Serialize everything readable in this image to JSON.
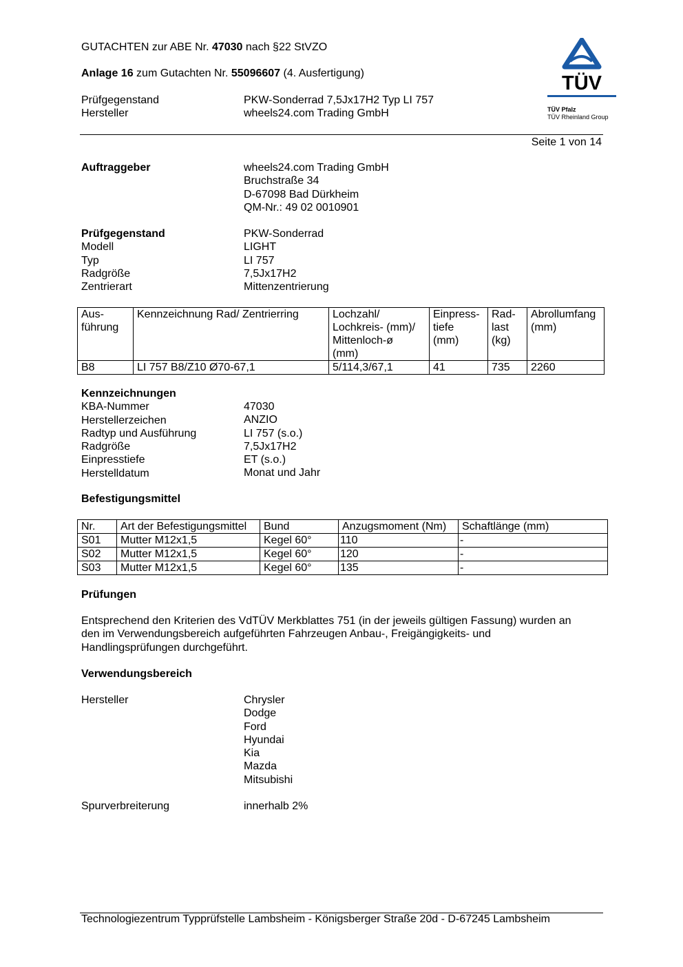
{
  "header": {
    "line1_prefix": "GUTACHTEN zur ABE Nr. ",
    "line1_number": "47030",
    "line1_suffix": " nach §22 StVZO",
    "line2_prefix": "Anlage 16",
    "line2_mid": " zum Gutachten Nr. ",
    "line2_number": "55096607",
    "line2_suffix": " (4. Ausfertigung)",
    "rows": [
      {
        "label": "Prüfgegenstand",
        "value": "PKW-Sonderrad 7,5Jx17H2 Typ LI 757"
      },
      {
        "label": "Hersteller",
        "value": "wheels24.com Trading GmbH"
      }
    ],
    "page": "Seite 1 von 14"
  },
  "logo": {
    "text": "TÜV",
    "line1": "TÜV Pfalz",
    "line2": "TÜV Rheinland Group",
    "color": "#1a5aa6"
  },
  "auftraggeber": {
    "label": "Auftraggeber",
    "lines": [
      "wheels24.com Trading GmbH",
      "Bruchstraße 34",
      "D-67098 Bad Dürkheim",
      "QM-Nr.: 49 02 0010901"
    ]
  },
  "pruefgegenstand": {
    "heading": "Prüfgegenstand",
    "heading_value": "PKW-Sonderrad",
    "rows": [
      {
        "label": "Modell",
        "value": "LIGHT"
      },
      {
        "label": "Typ",
        "value": "LI 757"
      },
      {
        "label": "Radgröße",
        "value": "7,5Jx17H2"
      },
      {
        "label": "Zentrierart",
        "value": "Mittenzentrierung"
      }
    ]
  },
  "rad_table": {
    "headers": [
      "Aus-\nführung",
      "Kennzeichnung Rad/ Zentrierring",
      "Lochzahl/\nLochkreis- (mm)/\nMittenloch-ø\n(mm)",
      "Einpress-\ntiefe\n(mm)",
      "Rad-\nlast\n(kg)",
      "Abrollumfang\n(mm)"
    ],
    "rows": [
      [
        "B8",
        "LI 757 B8/Z10 Ø70-67,1",
        "5/114,3/67,1",
        "41",
        "735",
        "2260"
      ]
    ]
  },
  "kennzeichnungen": {
    "heading": "Kennzeichnungen",
    "rows": [
      {
        "label": "KBA-Nummer",
        "value": "47030"
      },
      {
        "label": "Herstellerzeichen",
        "value": "ANZIO"
      },
      {
        "label": "Radtyp und Ausführung",
        "value": "LI 757 (s.o.)"
      },
      {
        "label": "Radgröße",
        "value": "7,5Jx17H2"
      },
      {
        "label": "Einpresstiefe",
        "value": "ET (s.o.)"
      },
      {
        "label": "Herstelldatum",
        "value": "Monat und Jahr"
      }
    ]
  },
  "befestigung": {
    "heading": "Befestigungsmittel",
    "headers": [
      "Nr.",
      "Art der Befestigungsmittel",
      "Bund",
      "Anzugsmoment (Nm)",
      "Schaftlänge (mm)"
    ],
    "rows": [
      [
        "S01",
        "Mutter M12x1,5",
        "Kegel 60°",
        "110",
        "-"
      ],
      [
        "S02",
        "Mutter M12x1,5",
        "Kegel 60°",
        "120",
        "-"
      ],
      [
        "S03",
        "Mutter M12x1,5",
        "Kegel 60°",
        "135",
        "-"
      ]
    ]
  },
  "pruefungen": {
    "heading": "Prüfungen",
    "lines": [
      "Entsprechend den Kriterien des VdTÜV Merkblattes 751 (in der jeweils gültigen Fassung) wurden an",
      "den im Verwendungsbereich aufgeführten Fahrzeugen Anbau-, Freigängigkeits- und",
      "Handlingsprüfungen durchgeführt."
    ]
  },
  "verwendungsbereich": {
    "heading": "Verwendungsbereich",
    "hersteller_label": "Hersteller",
    "hersteller": [
      "Chrysler",
      "Dodge",
      "Ford",
      "Hyundai",
      "Kia",
      "Mazda",
      "Mitsubishi"
    ],
    "spur_label": "Spurverbreiterung",
    "spur_value": "innerhalb 2%"
  },
  "footer": "Technologiezentrum Typprüfstelle Lambsheim - Königsberger Straße 20d - D-67245 Lambsheim"
}
